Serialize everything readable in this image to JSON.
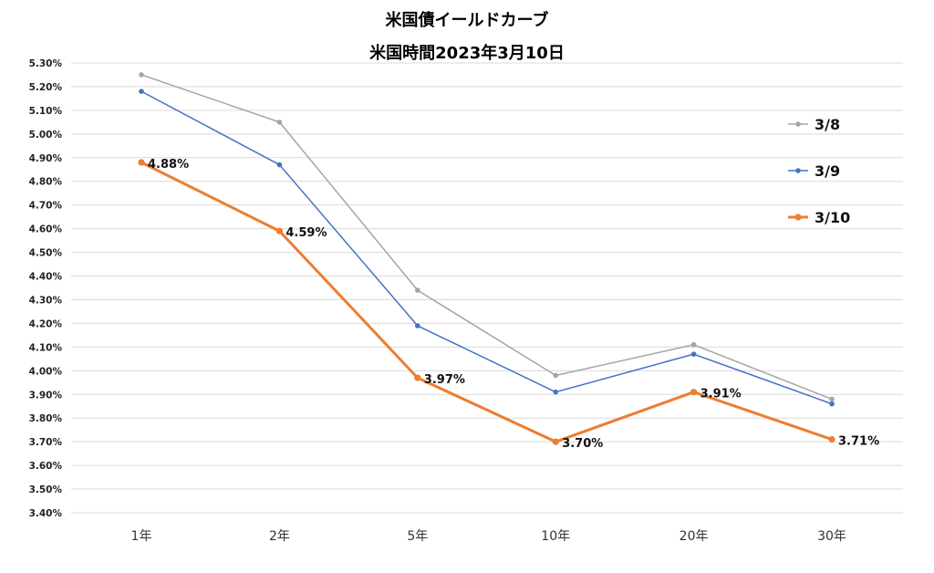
{
  "chart_data": {
    "type": "line",
    "title_lines": [
      "米国債イールドカーブ",
      "米国時間2023年3月10日"
    ],
    "categories": [
      "1年",
      "2年",
      "5年",
      "10年",
      "20年",
      "30年"
    ],
    "ylim": [
      3.4,
      5.3
    ],
    "ytick_step": 0.1,
    "ytick_labels": [
      "5.30%",
      "5.20%",
      "5.10%",
      "5.00%",
      "4.90%",
      "4.80%",
      "4.70%",
      "4.60%",
      "4.50%",
      "4.40%",
      "4.30%",
      "4.20%",
      "4.10%",
      "4.00%",
      "3.90%",
      "3.80%",
      "3.70%",
      "3.60%",
      "3.50%",
      "3.40%"
    ],
    "grid": "horizontal",
    "legend_position": "right",
    "series": [
      {
        "name": "3/8",
        "color": "#a5a5a5",
        "values": [
          5.25,
          5.05,
          4.34,
          3.98,
          4.11,
          3.88
        ]
      },
      {
        "name": "3/9",
        "color": "#4472c4",
        "values": [
          5.18,
          4.87,
          4.19,
          3.91,
          4.07,
          3.86
        ]
      },
      {
        "name": "3/10",
        "color": "#ed7d31",
        "values": [
          4.88,
          4.59,
          3.97,
          3.7,
          3.91,
          3.71
        ],
        "data_labels": [
          "4.88%",
          "4.59%",
          "3.97%",
          "3.70%",
          "3.91%",
          "3.71%"
        ]
      }
    ]
  }
}
